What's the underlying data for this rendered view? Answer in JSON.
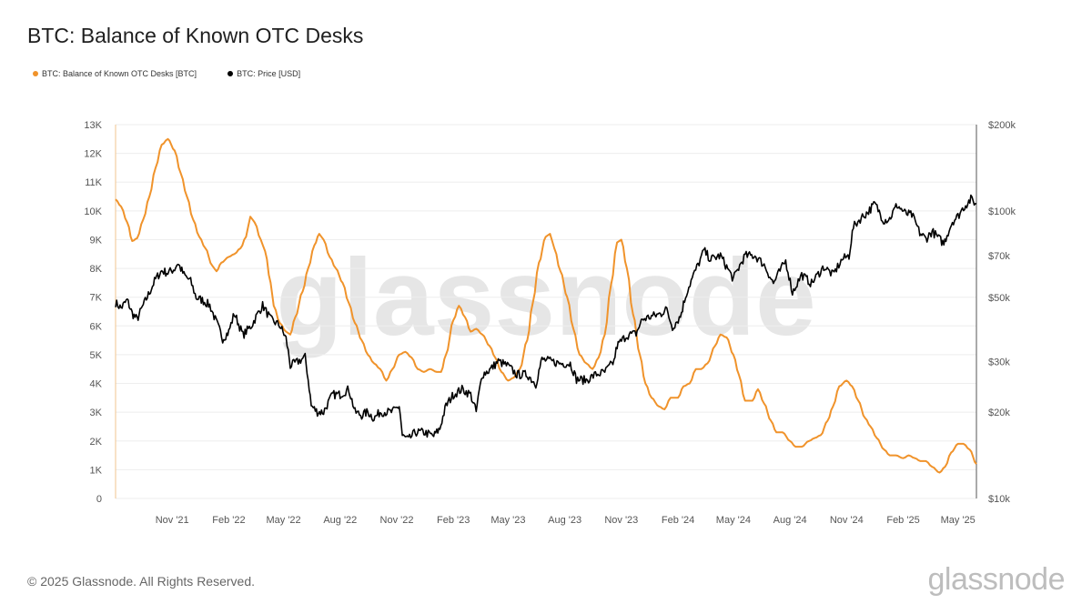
{
  "header": {
    "title": "BTC: Balance of Known OTC Desks"
  },
  "footer": {
    "copyright": "© 2025 Glassnode. All Rights Reserved.",
    "logo_text": "glassnode"
  },
  "chart_data": {
    "type": "line",
    "title": "BTC: Balance of Known OTC Desks",
    "watermark": "glassnode",
    "legend": [
      {
        "name": "BTC: Balance of Known OTC Desks [BTC]",
        "color": "#f0932b"
      },
      {
        "name": "BTC: Price [USD]",
        "color": "#000000"
      }
    ],
    "x_ticks": [
      "Nov '21",
      "Feb '22",
      "May '22",
      "Aug '22",
      "Nov '22",
      "Feb '23",
      "May '23",
      "Aug '23",
      "Nov '23",
      "Feb '24",
      "May '24",
      "Aug '24",
      "Nov '24",
      "Feb '25",
      "May '25"
    ],
    "y_left": {
      "ticks": [
        "0",
        "1K",
        "2K",
        "3K",
        "4K",
        "5K",
        "6K",
        "7K",
        "8K",
        "9K",
        "10K",
        "11K",
        "12K",
        "13K"
      ],
      "min": 0,
      "max": 13000
    },
    "y_right": {
      "scale": "log",
      "ticks": [
        "$10k",
        "$20k",
        "$30k",
        "$50k",
        "$70k",
        "$100k",
        "$200k"
      ],
      "values": [
        10000,
        20000,
        30000,
        50000,
        70000,
        100000,
        200000
      ],
      "min": 10000,
      "max": 200000
    },
    "grid": true,
    "series": [
      {
        "name": "BTC: Balance of Known OTC Desks [BTC]",
        "axis": "left",
        "color": "#f0932b",
        "points": [
          [
            "2021-08-01",
            10400
          ],
          [
            "2021-08-10",
            10150
          ],
          [
            "2021-08-20",
            9600
          ],
          [
            "2021-08-28",
            8950
          ],
          [
            "2021-09-05",
            9050
          ],
          [
            "2021-09-15",
            9700
          ],
          [
            "2021-09-25",
            10500
          ],
          [
            "2021-10-05",
            11500
          ],
          [
            "2021-10-15",
            12300
          ],
          [
            "2021-10-25",
            12500
          ],
          [
            "2021-11-05",
            12100
          ],
          [
            "2021-11-15",
            11300
          ],
          [
            "2021-11-25",
            10500
          ],
          [
            "2021-12-05",
            9700
          ],
          [
            "2021-12-15",
            9100
          ],
          [
            "2021-12-25",
            8700
          ],
          [
            "2022-01-05",
            8100
          ],
          [
            "2022-01-12",
            7900
          ],
          [
            "2022-01-20",
            8200
          ],
          [
            "2022-02-01",
            8400
          ],
          [
            "2022-02-10",
            8500
          ],
          [
            "2022-02-20",
            8700
          ],
          [
            "2022-03-01",
            9100
          ],
          [
            "2022-03-08",
            9800
          ],
          [
            "2022-03-15",
            9600
          ],
          [
            "2022-03-25",
            9000
          ],
          [
            "2022-04-01",
            8600
          ],
          [
            "2022-04-10",
            7500
          ],
          [
            "2022-04-15",
            6700
          ],
          [
            "2022-04-25",
            6100
          ],
          [
            "2022-05-05",
            5800
          ],
          [
            "2022-05-12",
            5700
          ],
          [
            "2022-05-20",
            6300
          ],
          [
            "2022-06-01",
            7200
          ],
          [
            "2022-06-10",
            8000
          ],
          [
            "2022-06-20",
            8800
          ],
          [
            "2022-06-28",
            9200
          ],
          [
            "2022-07-05",
            9000
          ],
          [
            "2022-07-15",
            8400
          ],
          [
            "2022-07-25",
            8000
          ],
          [
            "2022-08-05",
            7500
          ],
          [
            "2022-08-15",
            6800
          ],
          [
            "2022-08-25",
            6100
          ],
          [
            "2022-09-05",
            5500
          ],
          [
            "2022-09-15",
            5000
          ],
          [
            "2022-09-25",
            4700
          ],
          [
            "2022-10-05",
            4500
          ],
          [
            "2022-10-15",
            4100
          ],
          [
            "2022-10-25",
            4500
          ],
          [
            "2022-11-05",
            5000
          ],
          [
            "2022-11-15",
            5100
          ],
          [
            "2022-11-25",
            4900
          ],
          [
            "2022-12-05",
            4500
          ],
          [
            "2022-12-15",
            4400
          ],
          [
            "2022-12-25",
            4500
          ],
          [
            "2023-01-05",
            4400
          ],
          [
            "2023-01-12",
            4400
          ],
          [
            "2023-01-20",
            5000
          ],
          [
            "2023-02-01",
            6200
          ],
          [
            "2023-02-10",
            6700
          ],
          [
            "2023-02-20",
            6300
          ],
          [
            "2023-03-01",
            5800
          ],
          [
            "2023-03-10",
            5900
          ],
          [
            "2023-03-20",
            5700
          ],
          [
            "2023-04-01",
            5300
          ],
          [
            "2023-04-10",
            4900
          ],
          [
            "2023-04-20",
            4400
          ],
          [
            "2023-05-01",
            4100
          ],
          [
            "2023-05-10",
            4200
          ],
          [
            "2023-05-20",
            4500
          ],
          [
            "2023-06-01",
            5500
          ],
          [
            "2023-06-10",
            6800
          ],
          [
            "2023-06-20",
            8200
          ],
          [
            "2023-07-01",
            9100
          ],
          [
            "2023-07-08",
            9200
          ],
          [
            "2023-07-15",
            8700
          ],
          [
            "2023-07-25",
            7900
          ],
          [
            "2023-08-05",
            7000
          ],
          [
            "2023-08-15",
            5900
          ],
          [
            "2023-08-25",
            5000
          ],
          [
            "2023-09-05",
            4700
          ],
          [
            "2023-09-15",
            4500
          ],
          [
            "2023-09-25",
            4900
          ],
          [
            "2023-10-05",
            5700
          ],
          [
            "2023-10-15",
            7400
          ],
          [
            "2023-10-25",
            8900
          ],
          [
            "2023-11-01",
            9000
          ],
          [
            "2023-11-10",
            8000
          ],
          [
            "2023-11-20",
            6400
          ],
          [
            "2023-12-01",
            5000
          ],
          [
            "2023-12-10",
            4000
          ],
          [
            "2023-12-20",
            3500
          ],
          [
            "2024-01-01",
            3200
          ],
          [
            "2024-01-10",
            3100
          ],
          [
            "2024-01-20",
            3500
          ],
          [
            "2024-02-01",
            3500
          ],
          [
            "2024-02-10",
            3900
          ],
          [
            "2024-02-20",
            4000
          ],
          [
            "2024-03-01",
            4500
          ],
          [
            "2024-03-10",
            4500
          ],
          [
            "2024-03-20",
            4700
          ],
          [
            "2024-04-01",
            5300
          ],
          [
            "2024-04-10",
            5700
          ],
          [
            "2024-04-20",
            5600
          ],
          [
            "2024-05-01",
            5000
          ],
          [
            "2024-05-10",
            4300
          ],
          [
            "2024-05-20",
            3400
          ],
          [
            "2024-06-01",
            3400
          ],
          [
            "2024-06-10",
            3800
          ],
          [
            "2024-06-20",
            3300
          ],
          [
            "2024-07-01",
            2700
          ],
          [
            "2024-07-10",
            2300
          ],
          [
            "2024-07-20",
            2300
          ],
          [
            "2024-08-01",
            2000
          ],
          [
            "2024-08-10",
            1800
          ],
          [
            "2024-08-20",
            1800
          ],
          [
            "2024-09-01",
            2000
          ],
          [
            "2024-09-10",
            2100
          ],
          [
            "2024-09-20",
            2200
          ],
          [
            "2024-10-01",
            2700
          ],
          [
            "2024-10-10",
            3200
          ],
          [
            "2024-10-20",
            3900
          ],
          [
            "2024-11-01",
            4100
          ],
          [
            "2024-11-10",
            3900
          ],
          [
            "2024-11-20",
            3400
          ],
          [
            "2024-12-01",
            2800
          ],
          [
            "2024-12-10",
            2500
          ],
          [
            "2024-12-20",
            2100
          ],
          [
            "2025-01-01",
            1700
          ],
          [
            "2025-01-10",
            1500
          ],
          [
            "2025-01-20",
            1500
          ],
          [
            "2025-02-01",
            1400
          ],
          [
            "2025-02-10",
            1500
          ],
          [
            "2025-02-20",
            1400
          ],
          [
            "2025-03-01",
            1300
          ],
          [
            "2025-03-10",
            1300
          ],
          [
            "2025-03-20",
            1100
          ],
          [
            "2025-04-01",
            900
          ],
          [
            "2025-04-10",
            1100
          ],
          [
            "2025-04-20",
            1600
          ],
          [
            "2025-05-01",
            1900
          ],
          [
            "2025-05-10",
            1900
          ],
          [
            "2025-05-20",
            1700
          ],
          [
            "2025-05-31",
            1200
          ]
        ]
      },
      {
        "name": "BTC: Price [USD]",
        "axis": "right",
        "color": "#000000",
        "points": [
          [
            "2021-08-01",
            48000
          ],
          [
            "2021-08-10",
            46000
          ],
          [
            "2021-08-20",
            49000
          ],
          [
            "2021-08-28",
            44000
          ],
          [
            "2021-09-05",
            42000
          ],
          [
            "2021-09-15",
            47000
          ],
          [
            "2021-09-25",
            52000
          ],
          [
            "2021-10-05",
            58000
          ],
          [
            "2021-10-15",
            62000
          ],
          [
            "2021-10-25",
            61000
          ],
          [
            "2021-11-05",
            63000
          ],
          [
            "2021-11-10",
            66000
          ],
          [
            "2021-11-20",
            60000
          ],
          [
            "2021-12-01",
            57000
          ],
          [
            "2021-12-10",
            50000
          ],
          [
            "2021-12-20",
            49000
          ],
          [
            "2022-01-01",
            47000
          ],
          [
            "2022-01-10",
            42000
          ],
          [
            "2022-01-22",
            36000
          ],
          [
            "2022-02-01",
            38000
          ],
          [
            "2022-02-10",
            44000
          ],
          [
            "2022-02-24",
            37000
          ],
          [
            "2022-03-10",
            40000
          ],
          [
            "2022-03-28",
            47000
          ],
          [
            "2022-04-10",
            42000
          ],
          [
            "2022-04-25",
            40000
          ],
          [
            "2022-05-05",
            36000
          ],
          [
            "2022-05-12",
            29000
          ],
          [
            "2022-05-25",
            30000
          ],
          [
            "2022-06-05",
            31000
          ],
          [
            "2022-06-15",
            21000
          ],
          [
            "2022-06-25",
            20000
          ],
          [
            "2022-07-05",
            20000
          ],
          [
            "2022-07-20",
            23000
          ],
          [
            "2022-08-01",
            23000
          ],
          [
            "2022-08-15",
            24000
          ],
          [
            "2022-08-25",
            20000
          ],
          [
            "2022-09-05",
            19500
          ],
          [
            "2022-09-15",
            20000
          ],
          [
            "2022-09-25",
            19000
          ],
          [
            "2022-10-05",
            20000
          ],
          [
            "2022-10-25",
            20000
          ],
          [
            "2022-11-05",
            21000
          ],
          [
            "2022-11-10",
            16500
          ],
          [
            "2022-11-20",
            16000
          ],
          [
            "2022-12-01",
            17000
          ],
          [
            "2022-12-15",
            17000
          ],
          [
            "2022-12-31",
            16500
          ],
          [
            "2023-01-10",
            17500
          ],
          [
            "2023-01-20",
            21000
          ],
          [
            "2023-02-01",
            23000
          ],
          [
            "2023-02-15",
            24000
          ],
          [
            "2023-03-01",
            23000
          ],
          [
            "2023-03-10",
            20000
          ],
          [
            "2023-03-20",
            27000
          ],
          [
            "2023-04-01",
            28000
          ],
          [
            "2023-04-15",
            30000
          ],
          [
            "2023-04-30",
            29000
          ],
          [
            "2023-05-15",
            27000
          ],
          [
            "2023-06-01",
            27000
          ],
          [
            "2023-06-15",
            25000
          ],
          [
            "2023-06-25",
            30500
          ],
          [
            "2023-07-10",
            30000
          ],
          [
            "2023-07-25",
            29500
          ],
          [
            "2023-08-10",
            29500
          ],
          [
            "2023-08-20",
            26000
          ],
          [
            "2023-09-05",
            25800
          ],
          [
            "2023-09-20",
            27000
          ],
          [
            "2023-10-05",
            27500
          ],
          [
            "2023-10-20",
            30000
          ],
          [
            "2023-10-25",
            34000
          ],
          [
            "2023-11-10",
            37000
          ],
          [
            "2023-11-25",
            37500
          ],
          [
            "2023-12-05",
            42000
          ],
          [
            "2023-12-20",
            43000
          ],
          [
            "2024-01-05",
            44000
          ],
          [
            "2024-01-12",
            46000
          ],
          [
            "2024-01-23",
            39500
          ],
          [
            "2024-02-05",
            43000
          ],
          [
            "2024-02-15",
            52000
          ],
          [
            "2024-02-28",
            61000
          ],
          [
            "2024-03-10",
            69000
          ],
          [
            "2024-03-14",
            73000
          ],
          [
            "2024-03-25",
            68000
          ],
          [
            "2024-04-10",
            70000
          ],
          [
            "2024-04-20",
            64000
          ],
          [
            "2024-05-01",
            58000
          ],
          [
            "2024-05-20",
            70000
          ],
          [
            "2024-06-05",
            70000
          ],
          [
            "2024-06-20",
            65000
          ],
          [
            "2024-07-05",
            56000
          ],
          [
            "2024-07-25",
            67000
          ],
          [
            "2024-08-05",
            52000
          ],
          [
            "2024-08-20",
            60000
          ],
          [
            "2024-09-05",
            56000
          ],
          [
            "2024-09-25",
            64000
          ],
          [
            "2024-10-10",
            60000
          ],
          [
            "2024-10-25",
            68000
          ],
          [
            "2024-11-05",
            70000
          ],
          [
            "2024-11-12",
            88000
          ],
          [
            "2024-11-25",
            95000
          ],
          [
            "2024-12-05",
            99000
          ],
          [
            "2024-12-17",
            106000
          ],
          [
            "2024-12-31",
            93000
          ],
          [
            "2025-01-10",
            94000
          ],
          [
            "2025-01-22",
            105000
          ],
          [
            "2025-02-05",
            98000
          ],
          [
            "2025-02-15",
            97000
          ],
          [
            "2025-02-28",
            84000
          ],
          [
            "2025-03-10",
            80000
          ],
          [
            "2025-03-20",
            85000
          ],
          [
            "2025-04-08",
            77000
          ],
          [
            "2025-04-22",
            92000
          ],
          [
            "2025-05-01",
            96000
          ],
          [
            "2025-05-10",
            103000
          ],
          [
            "2025-05-22",
            110000
          ],
          [
            "2025-05-31",
            106000
          ]
        ]
      }
    ]
  }
}
